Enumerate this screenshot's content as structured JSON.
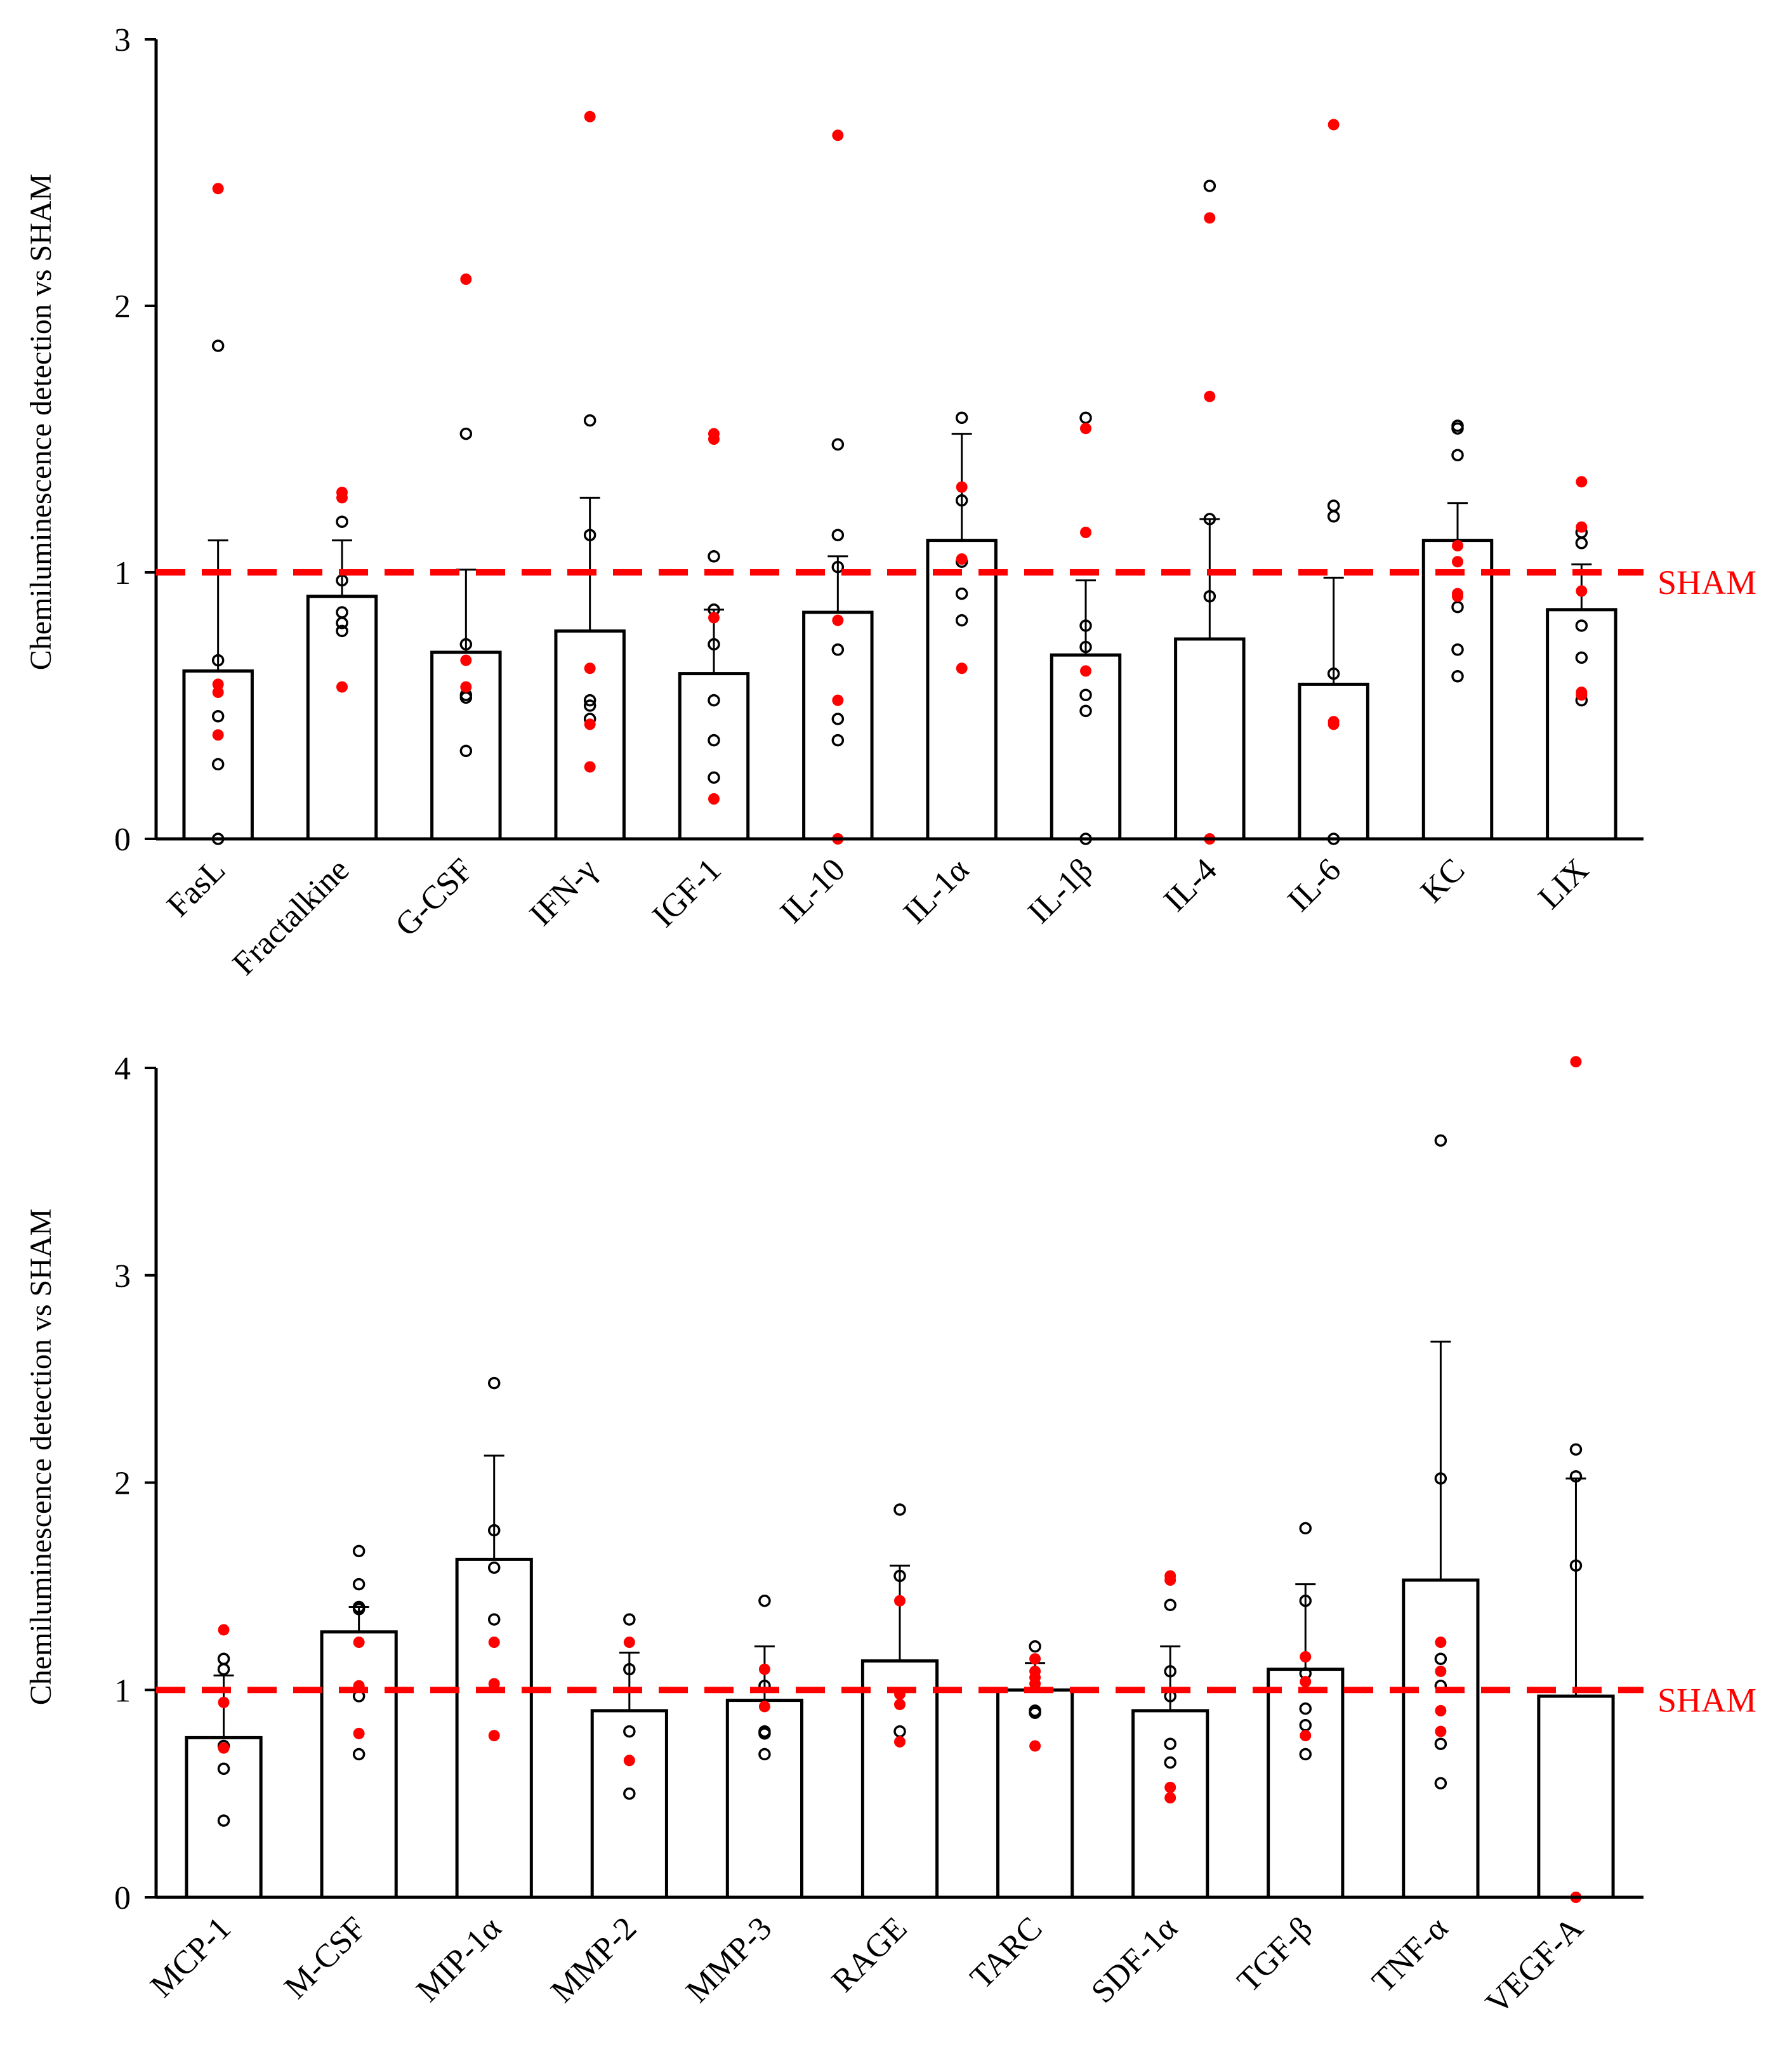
{
  "colors": {
    "axis": "#000000",
    "bar_fill": "#ffffff",
    "open_points": "#000000",
    "red_points": "#ff0000",
    "sham_line": "#ff0000"
  },
  "chart_data": [
    {
      "type": "bar",
      "ylabel": "Chemiluminescence detection vs SHAM",
      "ylim": [
        0,
        3
      ],
      "yticks": [
        "0",
        "1",
        "2",
        "3"
      ],
      "reference_line": {
        "value": 1,
        "label": "SHAM",
        "style": "dashed"
      },
      "categories": [
        "FasL",
        "Fractalkine",
        "G-CSF",
        "IFN-γ",
        "IGF-1",
        "IL-10",
        "IL-1α",
        "IL-1β",
        "IL-4",
        "IL-6",
        "KC",
        "LIX"
      ],
      "values": [
        0.63,
        0.91,
        0.7,
        0.78,
        0.62,
        0.85,
        1.12,
        0.69,
        0.75,
        0.58,
        1.12,
        0.86
      ],
      "error_upper": [
        1.12,
        1.12,
        1.01,
        1.28,
        0.86,
        1.06,
        1.52,
        0.97,
        1.2,
        0.98,
        1.26,
        1.03
      ],
      "points_open": [
        [
          1.85,
          0.67,
          0.46,
          0.28,
          0.0
        ],
        [
          1.19,
          0.97,
          0.85,
          0.81,
          0.78
        ],
        [
          1.52,
          0.73,
          0.54,
          0.53,
          0.33
        ],
        [
          1.57,
          1.14,
          0.52,
          0.5,
          0.45
        ],
        [
          1.06,
          0.86,
          0.73,
          0.52,
          0.37,
          0.23
        ],
        [
          1.48,
          1.14,
          1.02,
          0.71,
          0.45,
          0.37
        ],
        [
          1.58,
          1.27,
          1.04,
          0.92,
          0.82
        ],
        [
          1.58,
          0.8,
          0.72,
          0.54,
          0.48,
          0.0
        ],
        [
          2.45,
          1.2,
          0.91
        ],
        [
          1.25,
          1.21,
          0.62,
          0.0
        ],
        [
          1.55,
          1.54,
          1.44,
          0.87,
          0.71,
          0.61
        ],
        [
          1.15,
          1.11,
          0.8,
          0.68,
          0.52
        ]
      ],
      "points_red": [
        [
          2.44,
          0.58,
          0.55,
          0.39
        ],
        [
          1.3,
          1.28,
          0.57
        ],
        [
          2.1,
          0.67,
          0.57
        ],
        [
          2.71,
          0.64,
          0.43,
          0.27
        ],
        [
          1.52,
          1.5,
          0.83,
          0.15
        ],
        [
          2.64,
          0.82,
          0.52,
          0.0
        ],
        [
          1.32,
          1.05,
          0.64
        ],
        [
          1.54,
          1.15,
          0.63
        ],
        [
          2.33,
          1.66,
          0.0
        ],
        [
          2.68,
          0.44,
          0.43
        ],
        [
          1.1,
          1.04,
          0.92,
          0.91
        ],
        [
          1.34,
          1.17,
          0.93,
          0.55,
          0.54
        ]
      ]
    },
    {
      "type": "bar",
      "ylabel": "Chemiluminescence detection vs SHAM",
      "ylim": [
        0,
        4
      ],
      "yticks": [
        "0",
        "1",
        "2",
        "3",
        "4"
      ],
      "reference_line": {
        "value": 1,
        "label": "SHAM",
        "style": "dashed"
      },
      "categories": [
        "MCP-1",
        "M-CSF",
        "MIP-1α",
        "MMP-2",
        "MMP-3",
        "RAGE",
        "TARC",
        "SDF-1α",
        "TGF-β",
        "TNF-α",
        "VEGF-A"
      ],
      "values": [
        0.77,
        1.28,
        1.63,
        0.9,
        0.95,
        1.14,
        1.0,
        0.9,
        1.1,
        1.53,
        0.97
      ],
      "error_upper": [
        1.07,
        1.4,
        2.13,
        1.18,
        1.21,
        1.6,
        1.13,
        1.21,
        1.51,
        2.68,
        2.02
      ],
      "points_open": [
        [
          1.15,
          1.1,
          0.73,
          0.62,
          0.37
        ],
        [
          1.67,
          1.51,
          1.4,
          1.39,
          0.97,
          0.69
        ],
        [
          2.48,
          1.77,
          1.59,
          1.34
        ],
        [
          1.34,
          1.1,
          0.8,
          0.5
        ],
        [
          1.43,
          1.02,
          0.8,
          0.79,
          0.69
        ],
        [
          1.87,
          1.55,
          0.8
        ],
        [
          1.21,
          0.9,
          0.89
        ],
        [
          1.41,
          1.09,
          0.97,
          0.74,
          0.65
        ],
        [
          1.78,
          1.43,
          1.08,
          0.91,
          0.83,
          0.69
        ],
        [
          3.65,
          2.02,
          1.15,
          1.02,
          0.74,
          0.55
        ],
        [
          2.16,
          2.03,
          1.6
        ]
      ],
      "points_red": [
        [
          1.29,
          0.94,
          0.72
        ],
        [
          1.23,
          1.02,
          0.79
        ],
        [
          1.23,
          1.03,
          0.78
        ],
        [
          1.23,
          0.66
        ],
        [
          1.1,
          0.92
        ],
        [
          1.43,
          0.98,
          0.93,
          0.75
        ],
        [
          1.15,
          1.09,
          1.06,
          1.03,
          0.73
        ],
        [
          1.55,
          1.53,
          0.53,
          0.48
        ],
        [
          1.16,
          1.04,
          0.78
        ],
        [
          1.23,
          1.09,
          0.9,
          0.8
        ],
        [
          4.03,
          0.0
        ]
      ]
    }
  ]
}
